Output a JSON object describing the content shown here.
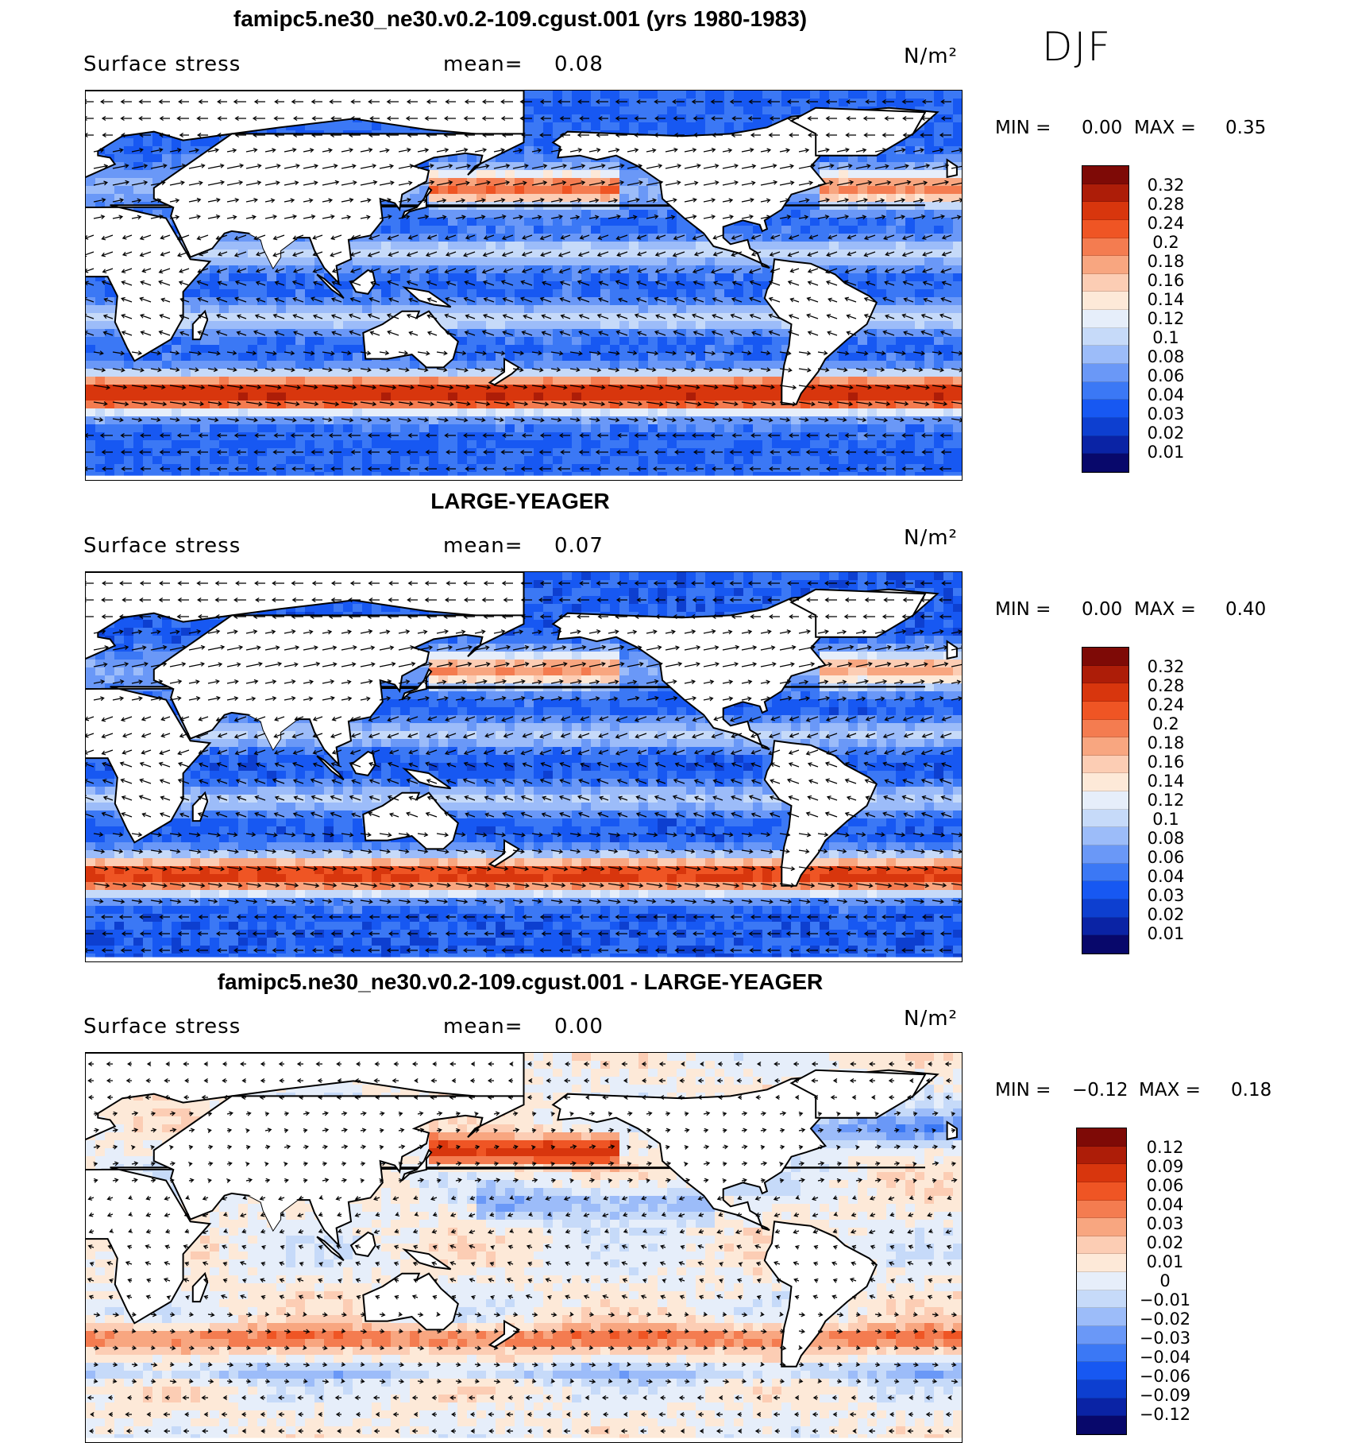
{
  "season": "DJF",
  "colors": {
    "scale": [
      "#08086b",
      "#0a23a5",
      "#0d3fd0",
      "#1758f2",
      "#3b78f5",
      "#6a98f7",
      "#9cbcf9",
      "#c6daf9",
      "#e6eefa",
      "#fde9d8",
      "#fccdb4",
      "#f8a680",
      "#f47c50",
      "#ef5524",
      "#d8360d",
      "#ad1d08",
      "#7e0a06"
    ],
    "land": "#ffffff",
    "coast": "#000000"
  },
  "panels": [
    {
      "title": "famipc5.ne30_ne30.v0.2-109.cgust.001 (yrs 1980-1983)",
      "variable": "Surface stress",
      "mean_label": "mean=",
      "mean_value": "0.08",
      "units": "N/m²",
      "min_label": "MIN =",
      "min_value": "0.00",
      "max_label": "MAX =",
      "max_value": "0.35",
      "levels": [
        "0.32",
        "0.28",
        "0.24",
        "0.2",
        "0.18",
        "0.16",
        "0.14",
        "0.12",
        "0.1",
        "0.08",
        "0.06",
        "0.04",
        "0.03",
        "0.02",
        "0.01"
      ]
    },
    {
      "title": "LARGE-YEAGER",
      "variable": "Surface stress",
      "mean_label": "mean=",
      "mean_value": "0.07",
      "units": "N/m²",
      "min_label": "MIN =",
      "min_value": "0.00",
      "max_label": "MAX =",
      "max_value": "0.40",
      "levels": [
        "0.32",
        "0.28",
        "0.24",
        "0.2",
        "0.18",
        "0.16",
        "0.14",
        "0.12",
        "0.1",
        "0.08",
        "0.06",
        "0.04",
        "0.03",
        "0.02",
        "0.01"
      ]
    },
    {
      "title": "famipc5.ne30_ne30.v0.2-109.cgust.001 - LARGE-YEAGER",
      "variable": "Surface stress",
      "mean_label": "mean=",
      "mean_value": "0.00",
      "units": "N/m²",
      "min_label": "MIN =",
      "min_value": "−0.12",
      "max_label": "MAX =",
      "max_value": "0.18",
      "levels": [
        "0.12",
        "0.09",
        "0.06",
        "0.04",
        "0.03",
        "0.02",
        "0.01",
        "0",
        "−0.01",
        "−0.02",
        "−0.03",
        "−0.04",
        "−0.06",
        "−0.09",
        "−0.12"
      ]
    }
  ]
}
